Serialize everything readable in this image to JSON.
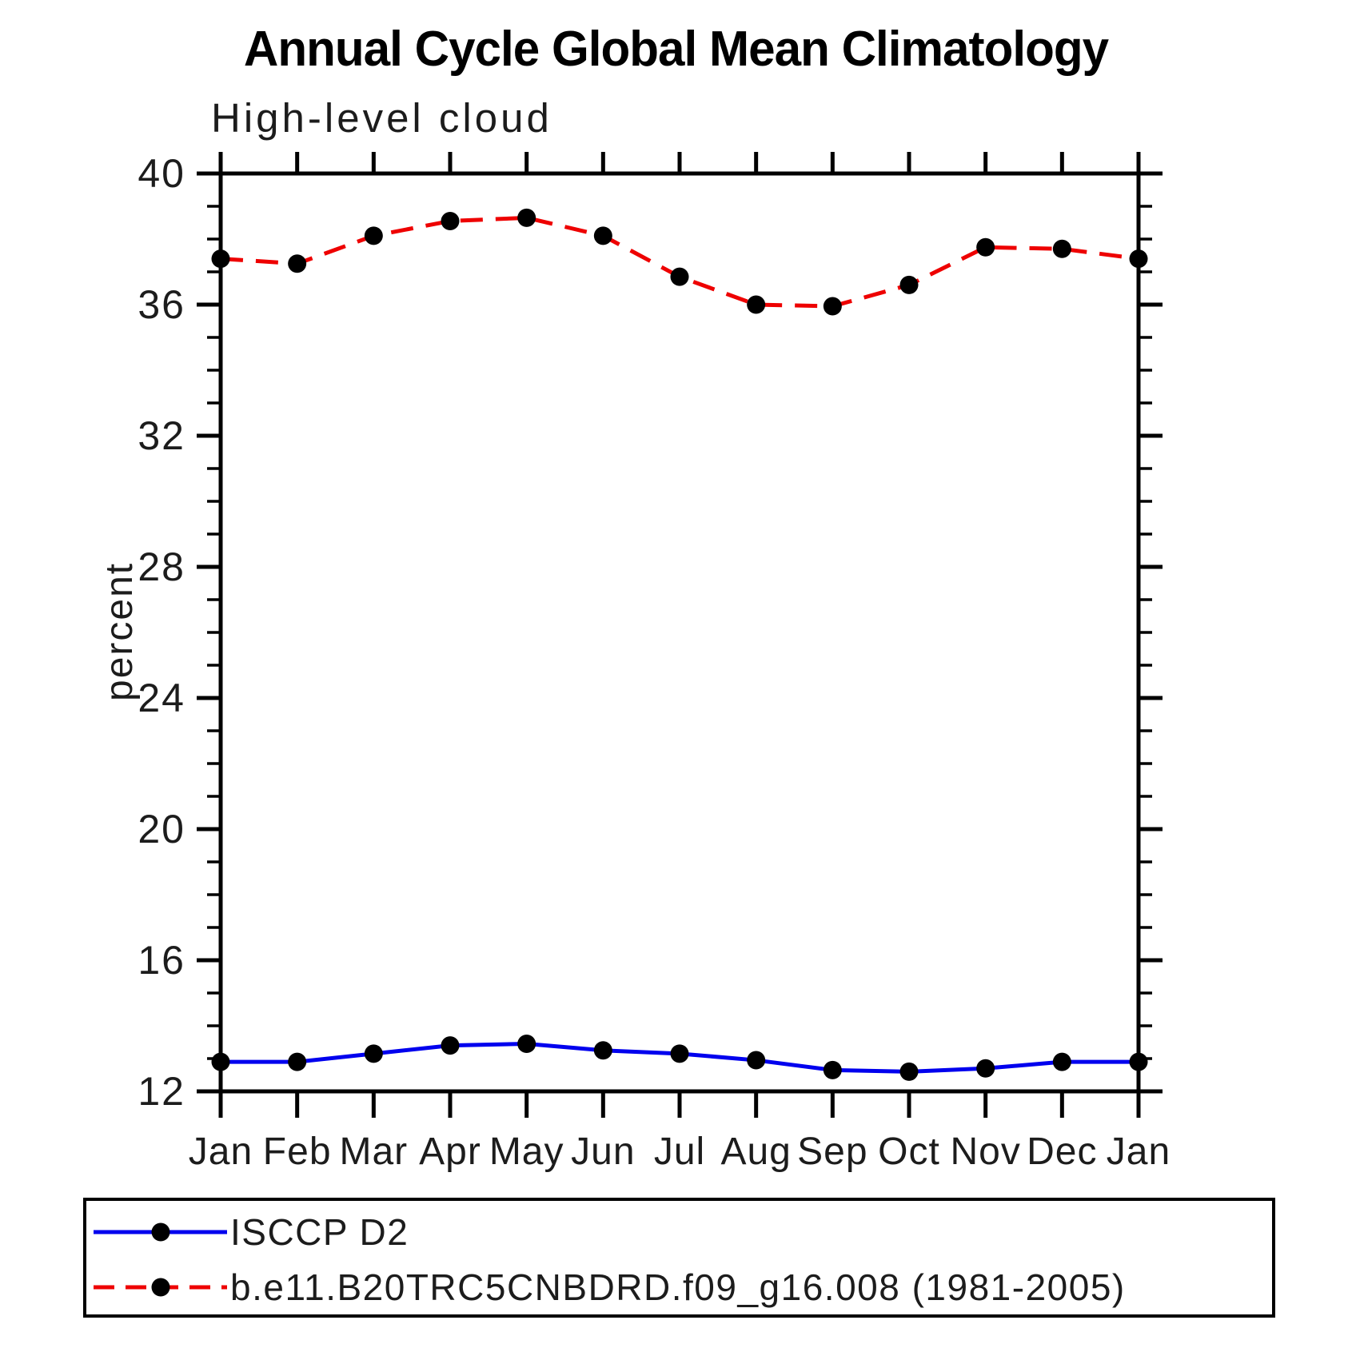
{
  "page": {
    "background": "#ffffff"
  },
  "chart_data": {
    "type": "line",
    "title": "Annual Cycle Global Mean Climatology",
    "subtitle": "High-level cloud",
    "ylabel": "percent",
    "xlabel": "",
    "ylim": [
      12,
      40
    ],
    "ytick_major": [
      12,
      16,
      20,
      24,
      28,
      32,
      36,
      40
    ],
    "ytick_minor_interval": 1,
    "categories": [
      "Jan",
      "Feb",
      "Mar",
      "Apr",
      "May",
      "Jun",
      "Jul",
      "Aug",
      "Sep",
      "Oct",
      "Nov",
      "Dec",
      "Jan"
    ],
    "series": [
      {
        "name": "ISCCP D2",
        "color": "#0000EE",
        "line_style": "solid",
        "marker": "filled-circle",
        "marker_color": "#000000",
        "values": [
          12.9,
          12.9,
          13.15,
          13.4,
          13.45,
          13.25,
          13.15,
          12.95,
          12.65,
          12.6,
          12.7,
          12.9,
          12.9
        ]
      },
      {
        "name": "b.e11.B20TRC5CNBDRD.f09_g16.008 (1981-2005)",
        "color": "#EE0000",
        "line_style": "dashed",
        "marker": "filled-circle",
        "marker_color": "#000000",
        "values": [
          37.4,
          37.25,
          38.1,
          38.55,
          38.65,
          38.1,
          36.85,
          36.0,
          35.95,
          36.6,
          37.75,
          37.7,
          37.4
        ]
      }
    ],
    "legend_position": "bottom",
    "grid": false,
    "axis_color": "#000000"
  }
}
